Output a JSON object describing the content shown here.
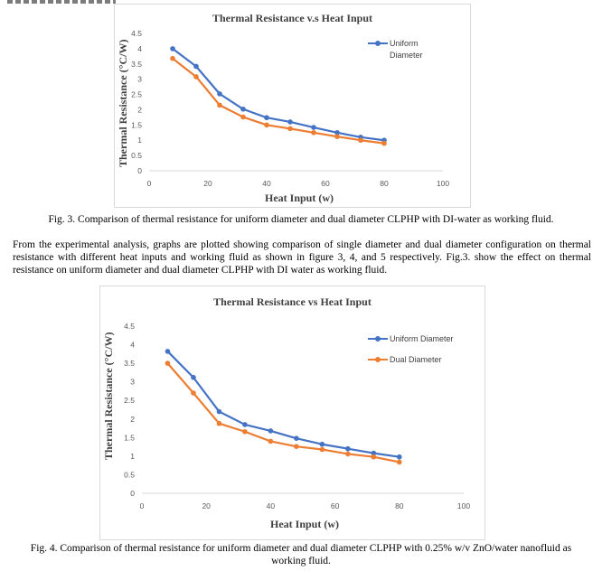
{
  "figure3": {
    "caption": "Fig. 3. Comparison of thermal resistance for uniform diameter and dual diameter CLPHP with DI-water as working fluid."
  },
  "paragraph": "From the experimental analysis, graphs are plotted showing comparison of single diameter and dual diameter configuration on thermal resistance with different heat inputs and working fluid as shown in figure 3, 4, and 5 respectively. Fig.3. show the effect on thermal resistance on uniform diameter and dual diameter CLPHP with DI water as working fluid.",
  "figure4": {
    "caption": "Fig. 4. Comparison of thermal resistance for uniform diameter and dual diameter CLPHP with 0.25% w/v ZnO/water nanofluid as working fluid."
  },
  "chart_data": [
    {
      "type": "line",
      "title": "Thermal Resistance v.s Heat Input",
      "xlabel": "Heat Input (w)",
      "ylabel": "Thermal Resistance (°C/W)",
      "xlim": [
        0,
        100
      ],
      "ylim": [
        0,
        4.5
      ],
      "xticks": [
        "0",
        "20",
        "40",
        "60",
        "80",
        "100"
      ],
      "yticks": [
        "0",
        "0.5",
        "1",
        "1.5",
        "2",
        "2.5",
        "3",
        "3.5",
        "4",
        "4.5"
      ],
      "grid": false,
      "legend_position": "top-right",
      "x": [
        8,
        16,
        24,
        32,
        40,
        48,
        56,
        64,
        72,
        80
      ],
      "series": [
        {
          "name": "Uniform Diameter",
          "color": "#4472c4",
          "values": [
            4.0,
            3.42,
            2.52,
            2.02,
            1.74,
            1.6,
            1.42,
            1.25,
            1.1,
            1.0
          ]
        },
        {
          "color": "#ed7d31",
          "values": [
            3.68,
            3.08,
            2.15,
            1.76,
            1.5,
            1.38,
            1.25,
            1.12,
            1.0,
            0.9
          ]
        }
      ]
    },
    {
      "type": "line",
      "title": "Thermal Resistance vs Heat Input",
      "xlabel": "Heat Input (w)",
      "ylabel": "Thermal Resistance (°C/W)",
      "xlim": [
        0,
        100
      ],
      "ylim": [
        0,
        4.5
      ],
      "xticks": [
        "0",
        "20",
        "40",
        "60",
        "80",
        "100"
      ],
      "yticks": [
        "0",
        "0.5",
        "1",
        "1.5",
        "2",
        "2.5",
        "3",
        "3.5",
        "4",
        "4.5"
      ],
      "grid": false,
      "legend_position": "top-right",
      "x": [
        8,
        16,
        24,
        32,
        40,
        48,
        56,
        64,
        72,
        80
      ],
      "series": [
        {
          "name": "Uniform Diameter",
          "color": "#4472c4",
          "values": [
            3.82,
            3.12,
            2.2,
            1.85,
            1.68,
            1.48,
            1.32,
            1.2,
            1.08,
            0.98
          ]
        },
        {
          "name": "Dual Diameter",
          "color": "#ed7d31",
          "values": [
            3.5,
            2.7,
            1.88,
            1.66,
            1.4,
            1.26,
            1.18,
            1.06,
            0.98,
            0.84
          ]
        }
      ]
    }
  ]
}
